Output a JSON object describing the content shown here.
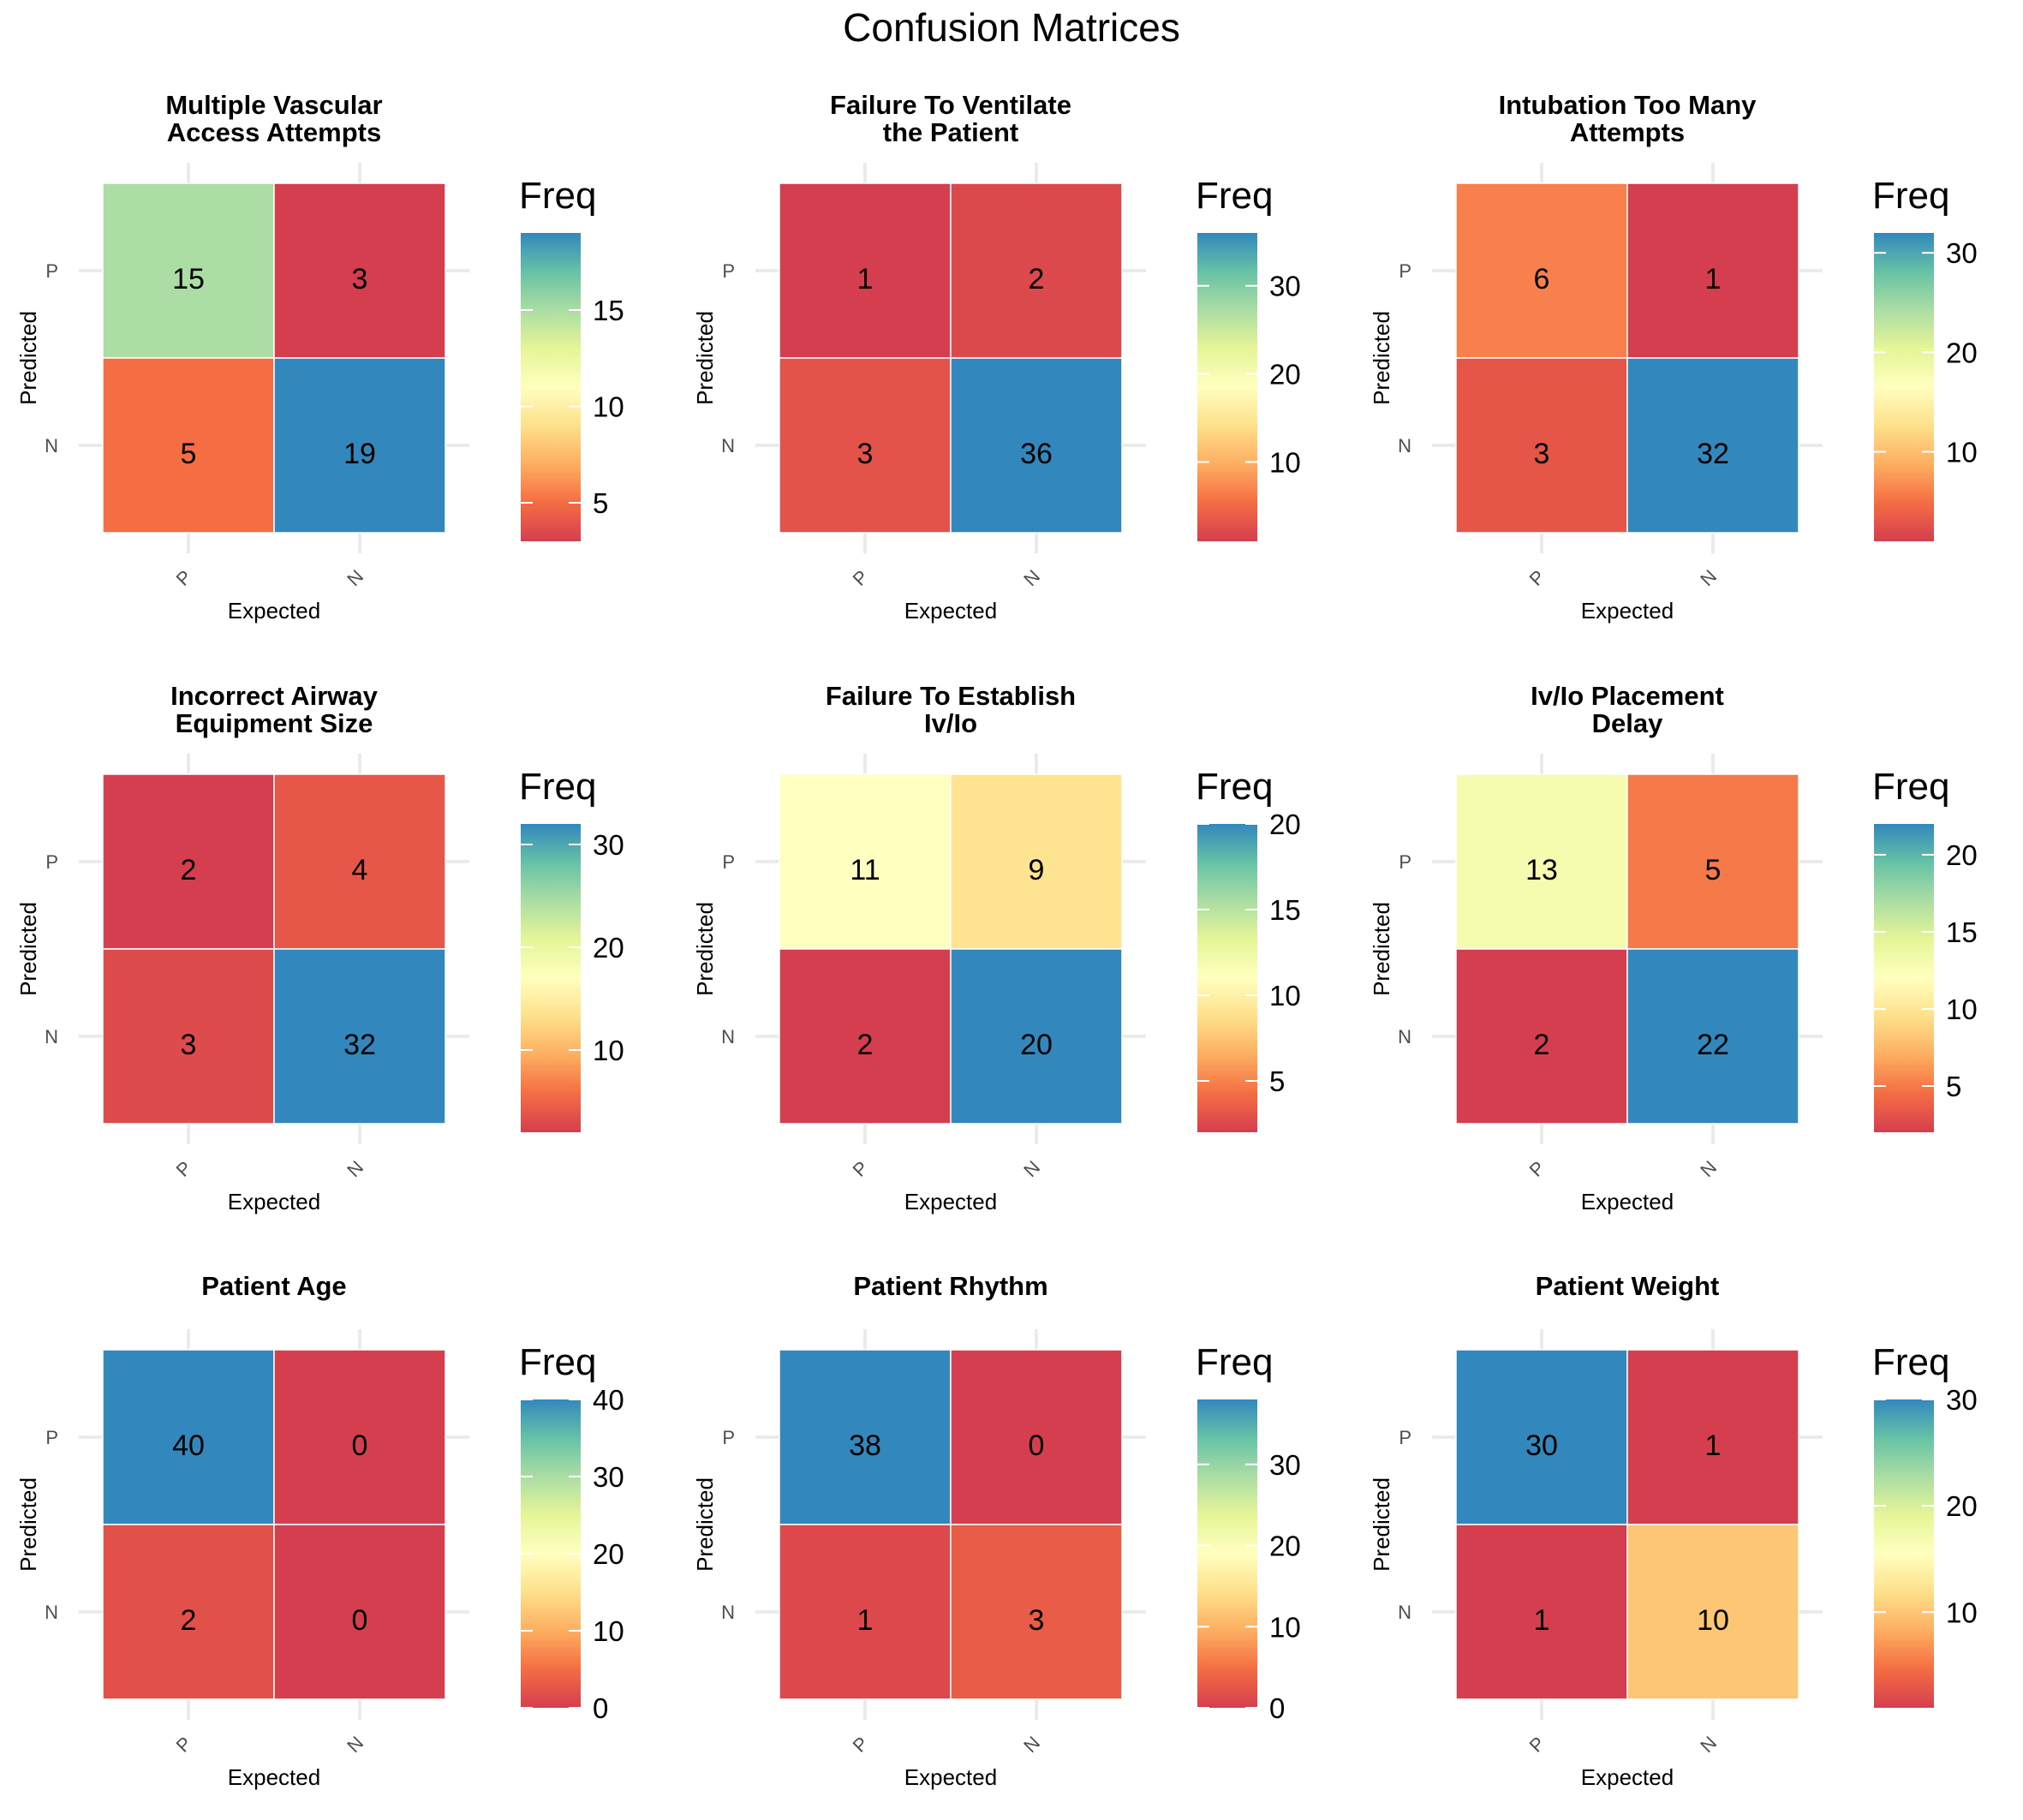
{
  "figure_title": "Confusion Matrices",
  "colorbar_title": "Freq",
  "x_axis_label": "Expected",
  "y_axis_label": "Predicted",
  "class_labels": [
    "P",
    "N"
  ],
  "palette": [
    "#d53e4f",
    "#f46d43",
    "#fdae61",
    "#fee08b",
    "#ffffbf",
    "#e6f598",
    "#abdda4",
    "#66c2a5",
    "#3288bd"
  ],
  "chart_data": [
    {
      "type": "heatmap",
      "title": "Multiple Vascular\nAccess Attempts",
      "x_categories": [
        "P",
        "N"
      ],
      "y_categories": [
        "P",
        "N"
      ],
      "matrix": [
        [
          15,
          3
        ],
        [
          5,
          19
        ]
      ],
      "colorbar": {
        "min": 3,
        "max": 19,
        "ticks": [
          5,
          10,
          15
        ]
      }
    },
    {
      "type": "heatmap",
      "title": "Failure To Ventilate\nthe Patient",
      "x_categories": [
        "P",
        "N"
      ],
      "y_categories": [
        "P",
        "N"
      ],
      "matrix": [
        [
          1,
          2
        ],
        [
          3,
          36
        ]
      ],
      "colorbar": {
        "min": 1,
        "max": 36,
        "ticks": [
          10,
          20,
          30
        ]
      }
    },
    {
      "type": "heatmap",
      "title": "Intubation Too Many\nAttempts",
      "x_categories": [
        "P",
        "N"
      ],
      "y_categories": [
        "P",
        "N"
      ],
      "matrix": [
        [
          6,
          1
        ],
        [
          3,
          32
        ]
      ],
      "colorbar": {
        "min": 1,
        "max": 32,
        "ticks": [
          10,
          20,
          30
        ]
      }
    },
    {
      "type": "heatmap",
      "title": "Incorrect Airway\nEquipment Size",
      "x_categories": [
        "P",
        "N"
      ],
      "y_categories": [
        "P",
        "N"
      ],
      "matrix": [
        [
          2,
          4
        ],
        [
          3,
          32
        ]
      ],
      "colorbar": {
        "min": 2,
        "max": 32,
        "ticks": [
          10,
          20,
          30
        ]
      }
    },
    {
      "type": "heatmap",
      "title": "Failure To Establish\nIv/Io",
      "x_categories": [
        "P",
        "N"
      ],
      "y_categories": [
        "P",
        "N"
      ],
      "matrix": [
        [
          11,
          9
        ],
        [
          2,
          20
        ]
      ],
      "colorbar": {
        "min": 2,
        "max": 20,
        "ticks": [
          5,
          10,
          15,
          20
        ]
      }
    },
    {
      "type": "heatmap",
      "title": "Iv/Io Placement\nDelay",
      "x_categories": [
        "P",
        "N"
      ],
      "y_categories": [
        "P",
        "N"
      ],
      "matrix": [
        [
          13,
          5
        ],
        [
          2,
          22
        ]
      ],
      "colorbar": {
        "min": 2,
        "max": 22,
        "ticks": [
          5,
          10,
          15,
          20
        ]
      }
    },
    {
      "type": "heatmap",
      "title": "Patient Age",
      "x_categories": [
        "P",
        "N"
      ],
      "y_categories": [
        "P",
        "N"
      ],
      "matrix": [
        [
          40,
          0
        ],
        [
          2,
          0
        ]
      ],
      "colorbar": {
        "min": 0,
        "max": 40,
        "ticks": [
          0,
          10,
          20,
          30,
          40
        ]
      }
    },
    {
      "type": "heatmap",
      "title": "Patient Rhythm",
      "x_categories": [
        "P",
        "N"
      ],
      "y_categories": [
        "P",
        "N"
      ],
      "matrix": [
        [
          38,
          0
        ],
        [
          1,
          3
        ]
      ],
      "colorbar": {
        "min": 0,
        "max": 38,
        "ticks": [
          0,
          10,
          20,
          30
        ]
      }
    },
    {
      "type": "heatmap",
      "title": "Patient Weight",
      "x_categories": [
        "P",
        "N"
      ],
      "y_categories": [
        "P",
        "N"
      ],
      "matrix": [
        [
          30,
          1
        ],
        [
          1,
          10
        ]
      ],
      "colorbar": {
        "min": 1,
        "max": 30,
        "ticks": [
          10,
          20,
          30
        ]
      }
    }
  ]
}
